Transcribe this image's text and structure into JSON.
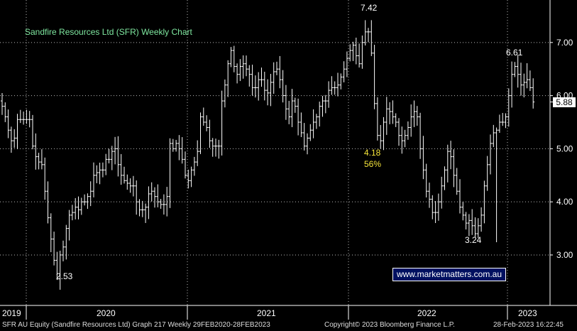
{
  "chart_data": {
    "type": "ohlc",
    "title": "Sandfire Resources Ltd (SFR) Weekly Chart",
    "ylim": [
      2.05,
      7.8
    ],
    "y_ticks": [
      "3.00",
      "4.00",
      "5.00",
      "6.00",
      "7.00"
    ],
    "x_labels": [
      "2019",
      "2020",
      "2021",
      "2022",
      "2023"
    ],
    "current_price": "5.88",
    "annotations": {
      "low_2020": "2.53",
      "high_2021": "7.42",
      "drop_low": "4.18",
      "drop_pct": "56%",
      "low_2022": "3.24",
      "high_2023": "6.61"
    },
    "closes": [
      5.8,
      5.6,
      5.35,
      5.15,
      5.2,
      5.55,
      5.55,
      5.55,
      5.55,
      5.55,
      5.05,
      4.85,
      4.75,
      4.7,
      4.2,
      3.7,
      3.3,
      2.9,
      2.55,
      3.0,
      3.15,
      3.5,
      3.75,
      3.8,
      3.9,
      3.85,
      4.0,
      4.0,
      4.1,
      4.2,
      4.5,
      4.55,
      4.6,
      4.6,
      4.8,
      4.8,
      4.95,
      5.0,
      4.7,
      4.5,
      4.4,
      4.35,
      4.3,
      4.3,
      4.0,
      3.85,
      3.85,
      3.9,
      4.15,
      4.2,
      4.1,
      4.0,
      3.95,
      3.95,
      4.1,
      5.1,
      5.0,
      5.1,
      5.0,
      4.8,
      4.5,
      4.4,
      4.6,
      4.75,
      4.95,
      5.6,
      5.5,
      5.4,
      5.15,
      5.05,
      5.05,
      5.05,
      5.9,
      6.2,
      6.6,
      6.85,
      6.55,
      6.4,
      6.55,
      6.6,
      6.5,
      6.4,
      6.15,
      6.15,
      6.3,
      6.3,
      6.1,
      6.05,
      6.25,
      6.45,
      6.5,
      6.3,
      6.0,
      5.75,
      5.6,
      5.9,
      5.8,
      5.5,
      5.3,
      5.05,
      5.2,
      5.35,
      5.5,
      5.6,
      5.8,
      5.9,
      5.9,
      6.1,
      6.15,
      6.15,
      6.2,
      6.35,
      6.5,
      6.7,
      6.85,
      6.95,
      6.75,
      6.6,
      7.0,
      7.2,
      7.2,
      6.8,
      5.85,
      5.25,
      5.15,
      5.5,
      5.75,
      5.7,
      5.6,
      5.5,
      5.25,
      5.15,
      5.25,
      5.4,
      5.6,
      5.7,
      5.6,
      5.0,
      4.6,
      4.2,
      4.05,
      3.8,
      3.8,
      4.0,
      4.3,
      4.6,
      4.95,
      4.85,
      4.5,
      4.2,
      3.9,
      3.75,
      3.6,
      3.65,
      3.55,
      3.4,
      3.55,
      3.75,
      4.3,
      4.7,
      5.1,
      5.3,
      5.35,
      5.5,
      5.5,
      5.6,
      6.0,
      6.4,
      6.55,
      6.4,
      6.2,
      6.25,
      6.3,
      6.15,
      5.88
    ]
  },
  "footer": {
    "left": "SFR AU Equity (Sandfire Resources Ltd) Graph 217  Weekly 29FEB2020-28FEB2023",
    "center": "Copyright© 2023 Bloomberg Finance L.P.",
    "right": "28-Feb-2023 16:22:45"
  },
  "watermark": "www.marketmatters.com.au"
}
